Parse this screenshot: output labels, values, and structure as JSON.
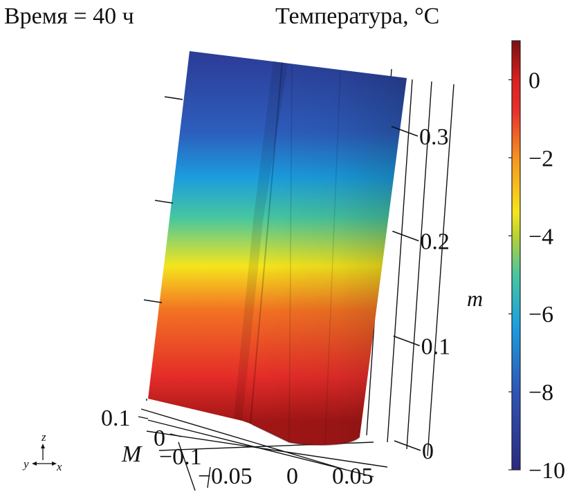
{
  "chart_data": {
    "type": "3d-surface",
    "time_label": "Время = 40 ч",
    "title": "Температура, °C",
    "colorbar": {
      "min": -10,
      "max": 1,
      "ticks": [
        0,
        -2,
        -4,
        -6,
        -8,
        -10
      ],
      "tick_labels": [
        "0",
        "−2",
        "−4",
        "−6",
        "−8",
        "−10"
      ],
      "stops": [
        {
          "t": -10,
          "color": "#2a2a80"
        },
        {
          "t": -8,
          "color": "#2f55b8"
        },
        {
          "t": -6.3,
          "color": "#1aa0e0"
        },
        {
          "t": -5,
          "color": "#47c6a0"
        },
        {
          "t": -4,
          "color": "#b9d332"
        },
        {
          "t": -3.4,
          "color": "#f5e51c"
        },
        {
          "t": -2,
          "color": "#f7931e"
        },
        {
          "t": -0.8,
          "color": "#e8302c"
        },
        {
          "t": 0,
          "color": "#d9211f"
        },
        {
          "t": 1,
          "color": "#7d0f10"
        }
      ]
    },
    "z_axis": {
      "label": "m",
      "ticks": [
        0,
        0.1,
        0.2,
        0.3
      ],
      "tick_labels": [
        "0",
        "0.1",
        "0.2",
        "0.3"
      ]
    },
    "y_axis": {
      "label": "M",
      "tick_labels": [
        "0.1",
        "0",
        "−0.1"
      ]
    },
    "x_axis": {
      "tick_labels": [
        "−0.05",
        "0",
        "0.05"
      ]
    },
    "body_gradient": [
      {
        "height_fraction": 0.0,
        "value": 0.6
      },
      {
        "height_fraction": 0.12,
        "value": -0.6
      },
      {
        "height_fraction": 0.3,
        "value": -1.6
      },
      {
        "height_fraction": 0.42,
        "value": -3.4
      },
      {
        "height_fraction": 0.55,
        "value": -5.0
      },
      {
        "height_fraction": 0.66,
        "value": -6.4
      },
      {
        "height_fraction": 0.78,
        "value": -7.8
      },
      {
        "height_fraction": 1.0,
        "value": -9.2
      }
    ],
    "triad": {
      "z": "z",
      "y": "y",
      "x": "x"
    }
  }
}
